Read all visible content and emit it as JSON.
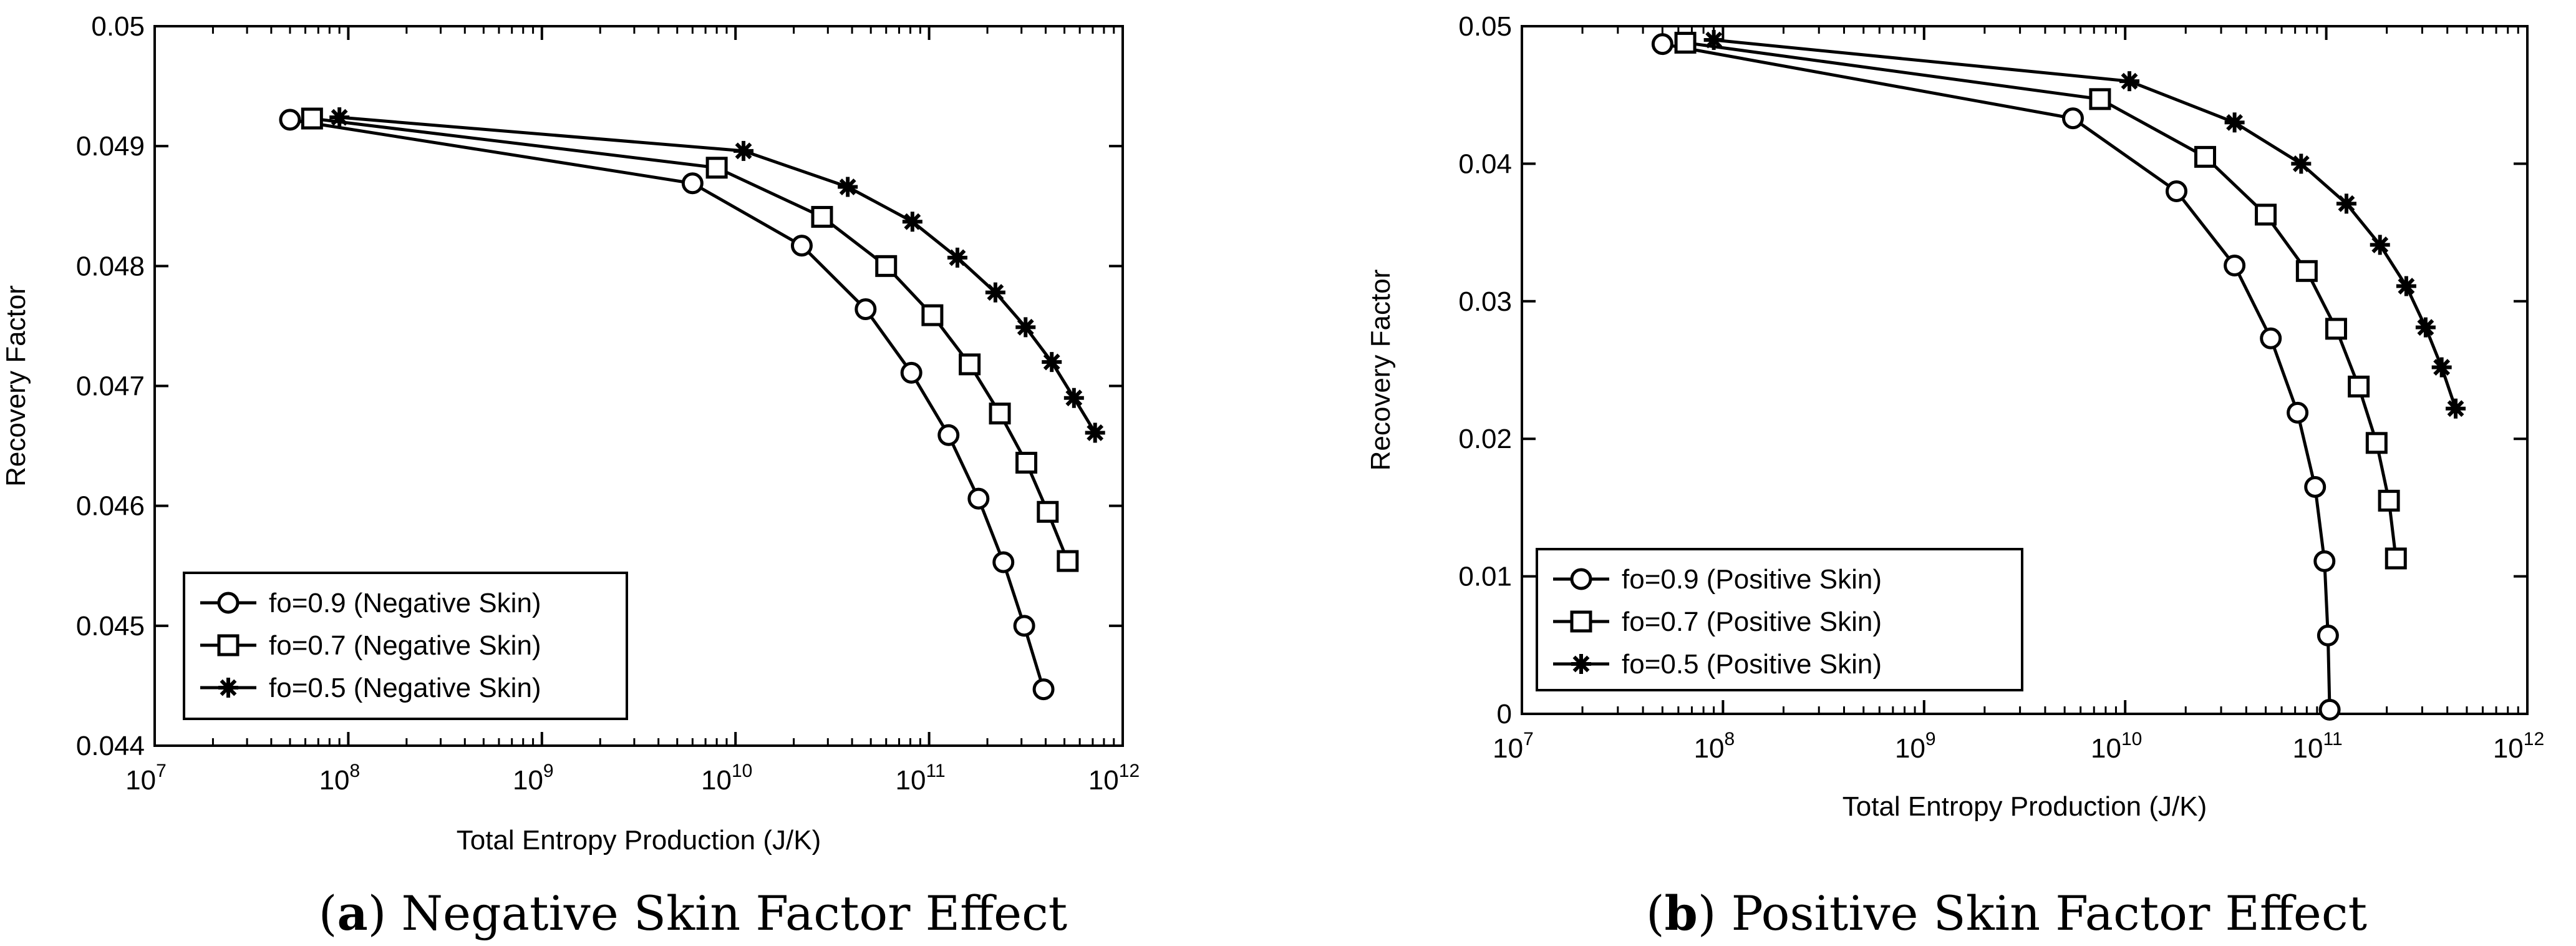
{
  "chart_data": [
    {
      "panel": "a",
      "type": "line",
      "caption_letter": "a",
      "caption_text": " Negative Skin Factor Effect",
      "xlabel": "Total Entropy Production (J/K)",
      "ylabel": "Recovery Factor",
      "xscale": "log",
      "xlim": [
        10000000,
        1000000000000
      ],
      "ylim": [
        0.044,
        0.05
      ],
      "x_ticks": [
        {
          "base": "10",
          "exp": "7"
        },
        {
          "base": "10",
          "exp": "8"
        },
        {
          "base": "10",
          "exp": "9"
        },
        {
          "base": "10",
          "exp": "10"
        },
        {
          "base": "10",
          "exp": "11"
        },
        {
          "base": "10",
          "exp": "12"
        }
      ],
      "y_ticks": [
        {
          "value": 0.044,
          "label": "0.044"
        },
        {
          "value": 0.045,
          "label": "0.045"
        },
        {
          "value": 0.046,
          "label": "0.046"
        },
        {
          "value": 0.047,
          "label": "0.047"
        },
        {
          "value": 0.048,
          "label": "0.048"
        },
        {
          "value": 0.049,
          "label": "0.049"
        },
        {
          "value": 0.05,
          "label": "0.05"
        }
      ],
      "legend_position": "bottom-left",
      "series": [
        {
          "name": "fo=0.9 (Negative Skin)",
          "marker": "circle",
          "x": [
            50000000,
            6000000000,
            22000000000,
            47000000000,
            81000000000,
            126000000000,
            180000000000,
            242000000000,
            310000000000,
            390000000000
          ],
          "y": [
            0.04922,
            0.04869,
            0.04817,
            0.04764,
            0.04711,
            0.04659,
            0.04606,
            0.04553,
            0.045,
            0.04447
          ]
        },
        {
          "name": "fo=0.7 (Negative Skin)",
          "marker": "square",
          "x": [
            65000000,
            8000000000,
            28000000000,
            60000000000,
            104000000000,
            162000000000,
            232000000000,
            318000000000,
            410000000000,
            520000000000
          ],
          "y": [
            0.04923,
            0.04882,
            0.04841,
            0.048,
            0.04759,
            0.04718,
            0.04677,
            0.04636,
            0.04595,
            0.04554
          ]
        },
        {
          "name": "fo=0.5 (Negative Skin)",
          "marker": "star",
          "x": [
            90000000,
            11000000000,
            38000000000,
            82000000000,
            140000000000,
            220000000000,
            315000000000,
            430000000000,
            560000000000,
            720000000000
          ],
          "y": [
            0.04924,
            0.04896,
            0.04866,
            0.04837,
            0.04807,
            0.04778,
            0.04749,
            0.0472,
            0.0469,
            0.04661
          ]
        }
      ]
    },
    {
      "panel": "b",
      "type": "line",
      "caption_letter": "b",
      "caption_text": " Positive Skin Factor Effect",
      "xlabel": "Total Entropy Production (J/K)",
      "ylabel": "Recovery Factor",
      "xscale": "log",
      "xlim": [
        10000000,
        1000000000000
      ],
      "ylim": [
        0,
        0.05
      ],
      "x_ticks": [
        {
          "base": "10",
          "exp": "7"
        },
        {
          "base": "10",
          "exp": "8"
        },
        {
          "base": "10",
          "exp": "9"
        },
        {
          "base": "10",
          "exp": "10"
        },
        {
          "base": "10",
          "exp": "11"
        },
        {
          "base": "10",
          "exp": "12"
        }
      ],
      "y_ticks": [
        {
          "value": 0,
          "label": "0"
        },
        {
          "value": 0.01,
          "label": "0.01"
        },
        {
          "value": 0.02,
          "label": "0.02"
        },
        {
          "value": 0.03,
          "label": "0.03"
        },
        {
          "value": 0.04,
          "label": "0.04"
        },
        {
          "value": 0.05,
          "label": "0.05"
        }
      ],
      "legend_position": "bottom-left",
      "series": [
        {
          "name": "fo=0.9 (Positive Skin)",
          "marker": "circle",
          "x": [
            50000000,
            5500000000,
            18000000000,
            35000000000,
            53000000000,
            72000000000,
            88000000000,
            98000000000,
            102000000000,
            104000000000
          ],
          "y": [
            0.0487,
            0.0433,
            0.038,
            0.0326,
            0.0273,
            0.0219,
            0.0165,
            0.0111,
            0.0057,
            0.0003
          ]
        },
        {
          "name": "fo=0.7 (Positive Skin)",
          "marker": "square",
          "x": [
            65000000,
            7500000000,
            25000000000,
            50000000000,
            80000000000,
            112000000000,
            145000000000,
            178000000000,
            205000000000,
            222000000000
          ],
          "y": [
            0.0488,
            0.0447,
            0.0405,
            0.0363,
            0.0322,
            0.028,
            0.0238,
            0.0197,
            0.0155,
            0.0113
          ]
        },
        {
          "name": "fo=0.5 (Positive Skin)",
          "marker": "star",
          "x": [
            90000000,
            10500000000,
            35000000000,
            75000000000,
            126000000000,
            185000000000,
            250000000000,
            312000000000,
            375000000000,
            440000000000
          ],
          "y": [
            0.049,
            0.046,
            0.043,
            0.04,
            0.0371,
            0.0341,
            0.0311,
            0.0281,
            0.0252,
            0.0222
          ]
        }
      ]
    }
  ]
}
